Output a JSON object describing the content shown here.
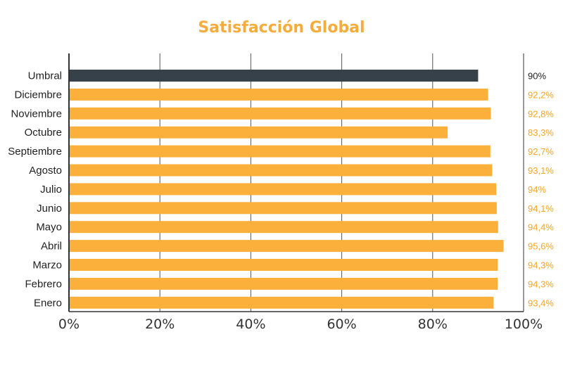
{
  "chart_data": {
    "type": "bar",
    "orientation": "horizontal",
    "title": "Satisfacción Global",
    "xlabel": "",
    "ylabel": "",
    "xlim": [
      0,
      100
    ],
    "grid": true,
    "categories": [
      "Umbral",
      "Diciembre",
      "Noviembre",
      "Octubre",
      "Septiembre",
      "Agosto",
      "Julio",
      "Junio",
      "Mayo",
      "Abril",
      "Marzo",
      "Febrero",
      "Enero"
    ],
    "values": [
      90,
      92.2,
      92.8,
      83.3,
      92.7,
      93.1,
      94,
      94.1,
      94.4,
      95.6,
      94.3,
      94.3,
      93.4
    ],
    "value_labels": [
      "90%",
      "92,2%",
      "92,8%",
      "83,3%",
      "92,7%",
      "93,1%",
      "94%",
      "94,1%",
      "94,4%",
      "95,6%",
      "94,3%",
      "94,3%",
      "93,4%"
    ],
    "x_ticks": [
      "0%",
      "20%",
      "40%",
      "60%",
      "80%",
      "100%"
    ],
    "x_tick_values": [
      0,
      20,
      40,
      60,
      80,
      100
    ],
    "colors": {
      "threshold": "#37414a",
      "bars": "#fbb03b",
      "title": "#f5ac3c",
      "threshold_label": "#222222",
      "value_label": "#f5a623",
      "axis": "#333333",
      "grid": "#555555"
    }
  }
}
